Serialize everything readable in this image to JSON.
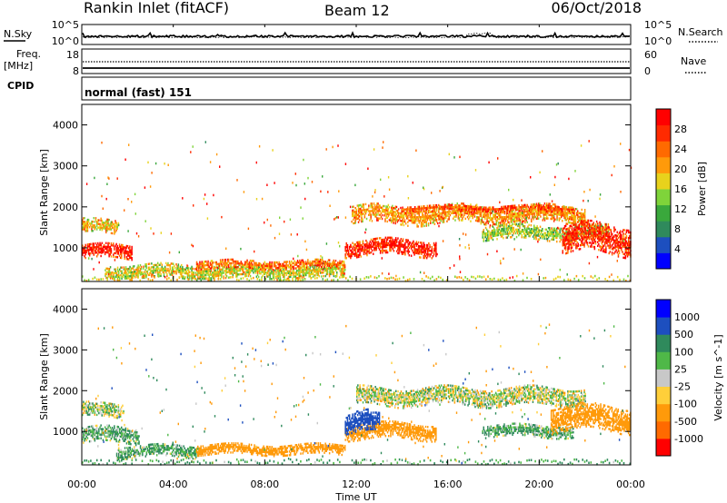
{
  "header": {
    "title": "Rankin Inlet (fitACF)",
    "beam": "Beam 12",
    "date": "06/Oct/2018"
  },
  "panels": {
    "nsky": {
      "left_label": "N.Sky",
      "right_label": "N.Search",
      "left_ticks": [
        "10^5",
        "10^0"
      ],
      "right_ticks": [
        "10^5",
        "10^0"
      ]
    },
    "freq": {
      "left_label_1": "Freq.",
      "left_label_2": "[MHz]",
      "left_ticks": [
        "18",
        "8"
      ],
      "right_label": "Nave",
      "right_ticks": [
        "60",
        "0"
      ]
    },
    "cpid": {
      "label": "CPID",
      "mode": "normal (fast) 151"
    }
  },
  "colors": {
    "power_scale": [
      "#0000ff",
      "#1d4fbf",
      "#2f8a5c",
      "#3aa83c",
      "#7fd43a",
      "#e8d21c",
      "#ff9a0a",
      "#ff6a00",
      "#ff2a00",
      "#ff0000"
    ],
    "velocity_scale": [
      "#0000ff",
      "#1d4fbf",
      "#2f8a5c",
      "#4fb848",
      "#c8c8c8",
      "#ffcf3a",
      "#ff9a0a",
      "#ff6a00",
      "#ff0000"
    ]
  },
  "chart_data": [
    {
      "type": "heatmap",
      "name": "power",
      "ylabel": "Slant Range [km]",
      "xlim": [
        0,
        24
      ],
      "ylim": [
        180,
        4500
      ],
      "x_ticks": [
        "00:00",
        "04:00",
        "08:00",
        "12:00",
        "16:00",
        "20:00",
        "00:00"
      ],
      "y_ticks": [
        "1000",
        "2000",
        "3000",
        "4000"
      ],
      "colorbar": {
        "label": "Power [dB]",
        "ticks": [
          "28",
          "24",
          "20",
          "16",
          "12",
          "8",
          "4"
        ],
        "range": [
          0,
          30
        ]
      },
      "features": [
        {
          "t_start": 0.0,
          "t_end": 2.2,
          "range_center": 900,
          "range_halfwidth": 180,
          "value": 27
        },
        {
          "t_start": 0.0,
          "t_end": 1.6,
          "range_center": 1500,
          "range_halfwidth": 160,
          "value": 18
        },
        {
          "t_start": 1.0,
          "t_end": 11.5,
          "range_center": 400,
          "range_halfwidth": 160,
          "value": 16
        },
        {
          "t_start": 5.0,
          "t_end": 11.5,
          "range_center": 580,
          "range_halfwidth": 100,
          "value": 22
        },
        {
          "t_start": 11.5,
          "t_end": 15.5,
          "range_center": 1000,
          "range_halfwidth": 200,
          "value": 27
        },
        {
          "t_start": 11.8,
          "t_end": 22.0,
          "range_center": 1800,
          "range_halfwidth": 220,
          "value": 20
        },
        {
          "t_start": 14.0,
          "t_end": 21.5,
          "range_center": 1950,
          "range_halfwidth": 90,
          "value": 24
        },
        {
          "t_start": 17.5,
          "t_end": 23.0,
          "range_center": 1350,
          "range_halfwidth": 160,
          "value": 14
        },
        {
          "t_start": 21.0,
          "t_end": 24.0,
          "range_center": 1200,
          "range_halfwidth": 350,
          "value": 26
        }
      ]
    },
    {
      "type": "heatmap",
      "name": "velocity",
      "ylabel": "Slant Range [km]",
      "xlabel": "Time UT",
      "xlim": [
        0,
        24
      ],
      "ylim": [
        180,
        4500
      ],
      "x_ticks": [
        "00:00",
        "04:00",
        "08:00",
        "12:00",
        "16:00",
        "20:00",
        "00:00"
      ],
      "y_ticks": [
        "1000",
        "2000",
        "3000",
        "4000"
      ],
      "colorbar": {
        "label": "Velocity [m s^-1]",
        "ticks": [
          "1000",
          "500",
          "100",
          "25",
          "-25",
          "-100",
          "-500",
          "-1000"
        ]
      },
      "features": [
        {
          "t_start": 0.0,
          "t_end": 2.5,
          "range_center": 900,
          "range_halfwidth": 200,
          "value": 100
        },
        {
          "t_start": 0.0,
          "t_end": 1.8,
          "range_center": 1500,
          "range_halfwidth": 160,
          "value": 25
        },
        {
          "t_start": 1.5,
          "t_end": 5.0,
          "range_center": 500,
          "range_halfwidth": 150,
          "value": 100
        },
        {
          "t_start": 5.0,
          "t_end": 11.5,
          "range_center": 550,
          "range_halfwidth": 130,
          "value": -300
        },
        {
          "t_start": 11.5,
          "t_end": 15.5,
          "range_center": 1000,
          "range_halfwidth": 200,
          "value": -300
        },
        {
          "t_start": 11.5,
          "t_end": 13.0,
          "range_center": 1200,
          "range_halfwidth": 250,
          "value": 800
        },
        {
          "t_start": 12.0,
          "t_end": 22.0,
          "range_center": 1850,
          "range_halfwidth": 220,
          "value": 0
        },
        {
          "t_start": 17.5,
          "t_end": 21.5,
          "range_center": 1000,
          "range_halfwidth": 150,
          "value": 100
        },
        {
          "t_start": 20.5,
          "t_end": 24.0,
          "range_center": 1300,
          "range_halfwidth": 300,
          "value": -300
        }
      ]
    }
  ]
}
